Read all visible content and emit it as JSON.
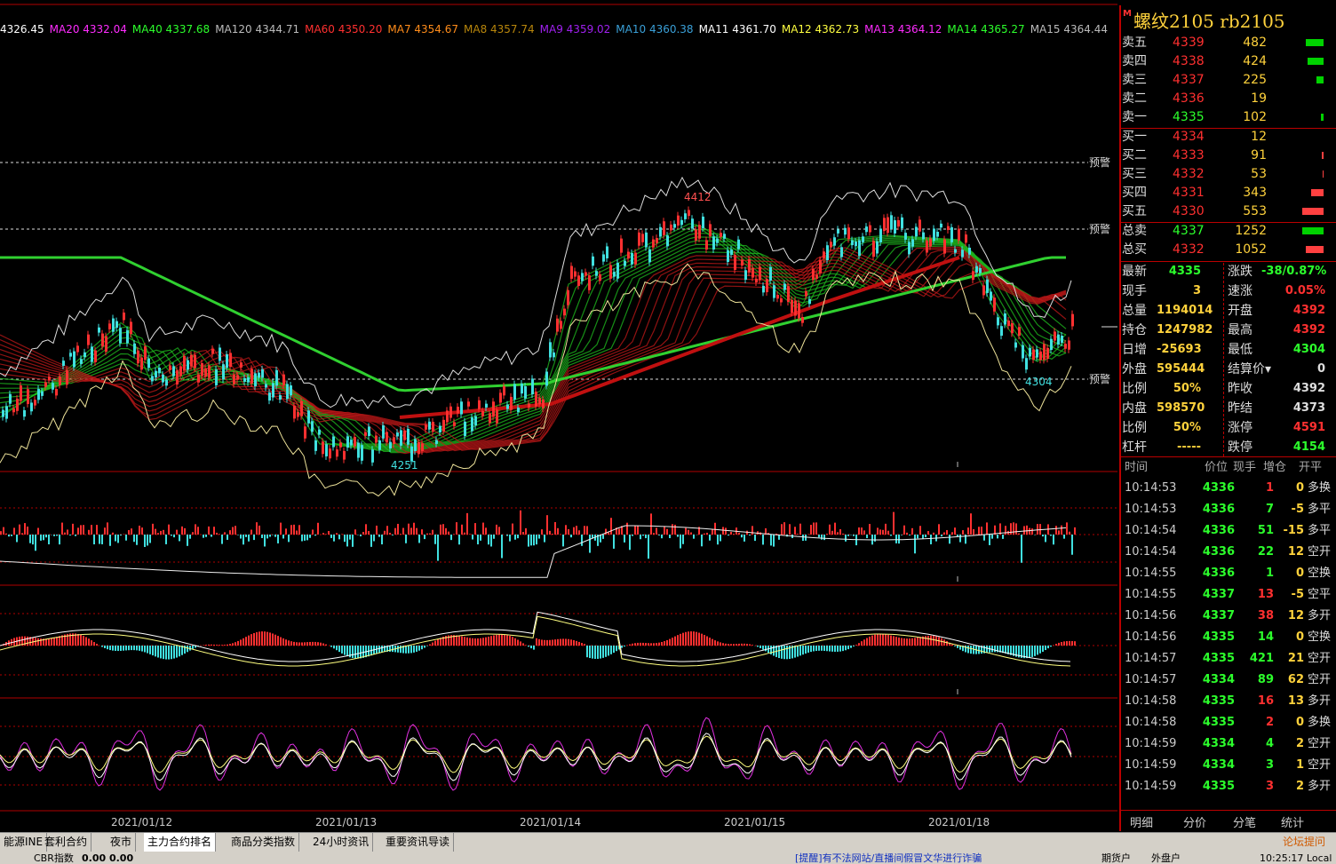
{
  "ma_indicators": [
    {
      "label": "4326.45",
      "color": "#ffffff"
    },
    {
      "label": "MA20 4332.04",
      "color": "#ff2cff"
    },
    {
      "label": "MA40 4337.68",
      "color": "#2cff2c"
    },
    {
      "label": "MA120 4344.71",
      "color": "#bbbbbb"
    },
    {
      "label": "MA60 4350.20",
      "color": "#ff3030"
    },
    {
      "label": "MA7 4354.67",
      "color": "#ff8c1a"
    },
    {
      "label": "MA8 4357.74",
      "color": "#b8860b"
    },
    {
      "label": "MA9 4359.02",
      "color": "#a020f0"
    },
    {
      "label": "MA10 4360.38",
      "color": "#3aa0d8"
    },
    {
      "label": "MA11 4361.70",
      "color": "#ffffff"
    },
    {
      "label": "MA12 4362.73",
      "color": "#ffff40"
    },
    {
      "label": "MA13 4364.12",
      "color": "#ff2cff"
    },
    {
      "label": "MA14 4365.27",
      "color": "#2cff2c"
    },
    {
      "label": "MA15 4364.44",
      "color": "#bbbbbb"
    }
  ],
  "chart_labels": {
    "high": "4412",
    "low_left": "4251",
    "low_right": "4304",
    "alert": "预警"
  },
  "dates": [
    "2021/01/12",
    "2021/01/13",
    "2021/01/14",
    "2021/01/15",
    "2021/01/18"
  ],
  "instrument": {
    "tag": "M",
    "name": "螺纹2105  rb2105"
  },
  "asks": [
    {
      "label": "卖五",
      "price": "4339",
      "vol": "482",
      "bar": "green",
      "barw": 20
    },
    {
      "label": "卖四",
      "price": "4338",
      "vol": "424",
      "bar": "green",
      "barw": 18
    },
    {
      "label": "卖三",
      "price": "4337",
      "vol": "225",
      "bar": "green",
      "barw": 8
    },
    {
      "label": "卖二",
      "price": "4336",
      "vol": "19",
      "bar": "green",
      "barw": 0
    },
    {
      "label": "卖一",
      "price": "4335",
      "vol": "102",
      "bar": "green",
      "barw": 3
    }
  ],
  "bids": [
    {
      "label": "买一",
      "price": "4334",
      "vol": "12",
      "bar": "red",
      "barw": 0
    },
    {
      "label": "买二",
      "price": "4333",
      "vol": "91",
      "bar": "red",
      "barw": 2
    },
    {
      "label": "买三",
      "price": "4332",
      "vol": "53",
      "bar": "red",
      "barw": 1
    },
    {
      "label": "买四",
      "price": "4331",
      "vol": "343",
      "bar": "red",
      "barw": 14
    },
    {
      "label": "买五",
      "price": "4330",
      "vol": "553",
      "bar": "red",
      "barw": 24
    }
  ],
  "totals": [
    {
      "label": "总卖",
      "price": "4337",
      "vol": "1252",
      "bar": "green",
      "barw": 24
    },
    {
      "label": "总买",
      "price": "4332",
      "vol": "1052",
      "bar": "red",
      "barw": 20
    }
  ],
  "stats": [
    {
      "l1": "最新",
      "v1": "4335",
      "c1": "#2cff2c",
      "l2": "涨跌",
      "v2": "-38/0.87%",
      "c2": "#2cff2c"
    },
    {
      "l1": "现手",
      "v1": "3",
      "c1": "#ffd23c",
      "l2": "速涨",
      "v2": "0.05%",
      "c2": "#ff3030"
    },
    {
      "l1": "总量",
      "v1": "1194014",
      "c1": "#ffd23c",
      "l2": "开盘",
      "v2": "4392",
      "c2": "#ff3030"
    },
    {
      "l1": "持仓",
      "v1": "1247982",
      "c1": "#ffd23c",
      "l2": "最高",
      "v2": "4392",
      "c2": "#ff3030"
    },
    {
      "l1": "日增",
      "v1": "-25693",
      "c1": "#ffd23c",
      "l2": "最低",
      "v2": "4304",
      "c2": "#2cff2c"
    },
    {
      "l1": "外盘",
      "v1": "595444",
      "c1": "#ffd23c",
      "l2": "结算价",
      "v2": "0",
      "c2": "#dddddd"
    },
    {
      "l1": "比例",
      "v1": "50%",
      "c1": "#ffd23c",
      "l2": "昨收",
      "v2": "4392",
      "c2": "#dddddd"
    },
    {
      "l1": "内盘",
      "v1": "598570",
      "c1": "#ffd23c",
      "l2": "昨结",
      "v2": "4373",
      "c2": "#dddddd"
    },
    {
      "l1": "比例",
      "v1": "50%",
      "c1": "#ffd23c",
      "l2": "涨停",
      "v2": "4591",
      "c2": "#ff3030"
    },
    {
      "l1": "杠杆",
      "v1": "-----",
      "c1": "#ffd23c",
      "l2": "跌停",
      "v2": "4154",
      "c2": "#2cff2c"
    }
  ],
  "tick_header": {
    "time": "时间",
    "price": "价位",
    "qty": "现手",
    "delta": "增仓",
    "kind": "开平"
  },
  "ticks": [
    {
      "time": "10:14:53",
      "price": "4336",
      "qty": "1",
      "qc": "#ff3030",
      "delta": "0",
      "kind": "多换"
    },
    {
      "time": "10:14:53",
      "price": "4336",
      "qty": "7",
      "qc": "#2cff2c",
      "delta": "-5",
      "kind": "多平"
    },
    {
      "time": "10:14:54",
      "price": "4336",
      "qty": "51",
      "qc": "#2cff2c",
      "delta": "-15",
      "kind": "多平"
    },
    {
      "time": "10:14:54",
      "price": "4336",
      "qty": "22",
      "qc": "#2cff2c",
      "delta": "12",
      "kind": "空开"
    },
    {
      "time": "10:14:55",
      "price": "4336",
      "qty": "1",
      "qc": "#2cff2c",
      "delta": "0",
      "kind": "空换"
    },
    {
      "time": "10:14:55",
      "price": "4337",
      "qty": "13",
      "qc": "#ff3030",
      "delta": "-5",
      "kind": "空平"
    },
    {
      "time": "10:14:56",
      "price": "4337",
      "qty": "38",
      "qc": "#ff3030",
      "delta": "12",
      "kind": "多开"
    },
    {
      "time": "10:14:56",
      "price": "4335",
      "qty": "14",
      "qc": "#2cff2c",
      "delta": "0",
      "kind": "空换"
    },
    {
      "time": "10:14:57",
      "price": "4335",
      "qty": "421",
      "qc": "#2cff2c",
      "delta": "21",
      "kind": "空开"
    },
    {
      "time": "10:14:57",
      "price": "4334",
      "qty": "89",
      "qc": "#2cff2c",
      "delta": "62",
      "kind": "空开"
    },
    {
      "time": "10:14:58",
      "price": "4335",
      "qty": "16",
      "qc": "#ff3030",
      "delta": "13",
      "kind": "多开"
    },
    {
      "time": "10:14:58",
      "price": "4335",
      "qty": "2",
      "qc": "#ff3030",
      "delta": "0",
      "kind": "多换"
    },
    {
      "time": "10:14:59",
      "price": "4334",
      "qty": "4",
      "qc": "#2cff2c",
      "delta": "2",
      "kind": "空开"
    },
    {
      "time": "10:14:59",
      "price": "4334",
      "qty": "3",
      "qc": "#2cff2c",
      "delta": "1",
      "kind": "空开"
    },
    {
      "time": "10:14:59",
      "price": "4335",
      "qty": "3",
      "qc": "#ff3030",
      "delta": "2",
      "kind": "多开"
    }
  ],
  "panel_tabs": [
    "明细",
    "分价",
    "分笔",
    "统计"
  ],
  "bottom_tabs": [
    "能源INE",
    "套利合约",
    "夜市",
    "主力合约排名",
    "商品分类指数",
    "24小时资讯",
    "重要资讯导读"
  ],
  "active_tab": "主力合约排名",
  "forum": "论坛提问",
  "status": {
    "cbr": "CBR指数",
    "cbr_val": "0.00 0.00",
    "notice": "[提醒]有不法网站/直播间假冒文华进行诈骗",
    "btn1": "期货户",
    "btn2": "外盘户",
    "clock": "10:25:17 Local"
  },
  "colors": {
    "up": "#ff3030",
    "down": "#2cff2c",
    "gold": "#ffd23c",
    "grid": "#b00000"
  }
}
